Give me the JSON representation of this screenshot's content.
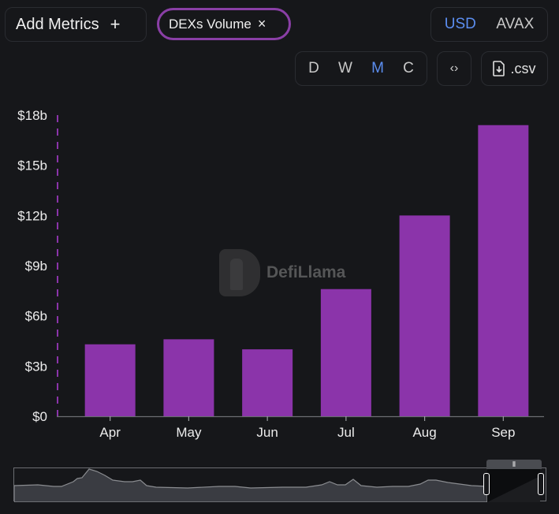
{
  "toolbar": {
    "add_metrics_label": "Add Metrics",
    "add_icon": "+",
    "metric_chip_label": "DEXs Volume",
    "remove_icon": "×",
    "currency_options": [
      "USD",
      "AVAX"
    ],
    "currency_selected": "USD",
    "period_options": [
      "D",
      "W",
      "M",
      "C"
    ],
    "period_selected": "M",
    "embed_icon": "‹›",
    "csv_label": ".csv"
  },
  "watermark": {
    "text": "DefiLlama"
  },
  "colors": {
    "bar": "#8b34aa",
    "accent": "#5b8def",
    "chip_border": "#8a3fa6",
    "background": "#16171a"
  },
  "chart_data": {
    "type": "bar",
    "title": "DEXs Volume",
    "xlabel": "",
    "ylabel": "",
    "categories": [
      "Apr",
      "May",
      "Jun",
      "Jul",
      "Aug",
      "Sep"
    ],
    "series": [
      {
        "name": "DEXs Volume",
        "unit": "USD billions",
        "values": [
          4.3,
          4.6,
          4.0,
          7.6,
          12.0,
          17.4
        ]
      }
    ],
    "ylim": [
      0,
      18
    ],
    "yticks": [
      0,
      3,
      6,
      9,
      12,
      15,
      18
    ],
    "ytick_labels": [
      "$0",
      "$3b",
      "$6b",
      "$9b",
      "$12b",
      "$15b",
      "$18b"
    ],
    "grid": false,
    "legend": "none"
  }
}
